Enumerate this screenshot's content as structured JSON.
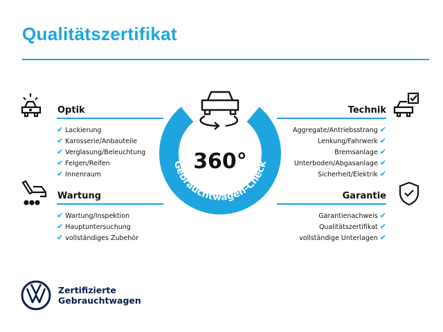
{
  "title": "Qualitätszertifikat",
  "badge": {
    "number": "360°",
    "ring_text": "Gebrauchtwagen-Check"
  },
  "sections": {
    "optik": {
      "heading": "Optik",
      "items": [
        "Lackierung",
        "Karosserie/Anbauteile",
        "Verglasung/Beleuchtung",
        "Felgen/Reifen",
        "Innenraum"
      ]
    },
    "wartung": {
      "heading": "Wartung",
      "items": [
        "Wartung/Inspektion",
        "Hauptuntersuchung",
        "vollständiges Zubehör"
      ]
    },
    "technik": {
      "heading": "Technik",
      "items": [
        "Aggregate/Antriebsstrang",
        "Lenkung/Fahrwerk",
        "Bremsanlage",
        "Unterboden/Abgasanlage",
        "Sicherheit/Elektrik"
      ]
    },
    "garantie": {
      "heading": "Garantie",
      "items": [
        "Garantienachweis",
        "Qualitätszertifikat",
        "vollständige Unterlagen"
      ]
    }
  },
  "brand": {
    "line1": "Zertifizierte",
    "line2": "Gebrauchtwagen"
  },
  "check_mark": "✔",
  "colors": {
    "accent": "#1ea5e0",
    "brand": "#0a1e4d"
  }
}
